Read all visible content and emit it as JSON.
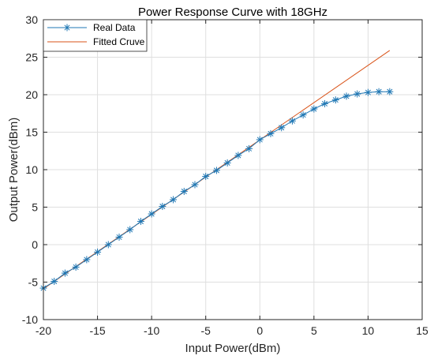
{
  "chart_data": {
    "type": "line",
    "title": "Power Response Curve with 18GHz",
    "xlabel": "Input Power(dBm)",
    "ylabel": "Output Power(dBm)",
    "xlim": [
      -20,
      15
    ],
    "ylim": [
      -10,
      30
    ],
    "xticks": [
      "-20",
      "-15",
      "-10",
      "-5",
      "0",
      "5",
      "10",
      "15"
    ],
    "yticks": [
      "-10",
      "-5",
      "0",
      "5",
      "10",
      "15",
      "20",
      "25",
      "30"
    ],
    "grid": true,
    "legend_position": "top-left",
    "series": [
      {
        "name": "Real Data",
        "color": "#1f77b4",
        "marker": "asterisk",
        "points": [
          [
            -20,
            -5.8
          ],
          [
            -19,
            -4.9
          ],
          [
            -18,
            -3.8
          ],
          [
            -17,
            -3.0
          ],
          [
            -16,
            -2.0
          ],
          [
            -15,
            -1.0
          ],
          [
            -14,
            0.0
          ],
          [
            -13,
            1.0
          ],
          [
            -12,
            2.0
          ],
          [
            -11,
            3.1
          ],
          [
            -10,
            4.1
          ],
          [
            -9,
            5.1
          ],
          [
            -8,
            6.0
          ],
          [
            -7,
            7.1
          ],
          [
            -6,
            8.0
          ],
          [
            -5,
            9.1
          ],
          [
            -4,
            9.9
          ],
          [
            -3,
            10.9
          ],
          [
            -2,
            11.9
          ],
          [
            -1,
            12.8
          ],
          [
            0,
            14.0
          ],
          [
            1,
            14.8
          ],
          [
            2,
            15.6
          ],
          [
            3,
            16.5
          ],
          [
            4,
            17.3
          ],
          [
            5,
            18.1
          ],
          [
            6,
            18.8
          ],
          [
            7,
            19.3
          ],
          [
            8,
            19.8
          ],
          [
            9,
            20.1
          ],
          [
            10,
            20.3
          ],
          [
            11,
            20.4
          ],
          [
            12,
            20.4
          ]
        ]
      },
      {
        "name": "Fitted Cruve",
        "color": "#d95319",
        "marker": "none",
        "points": [
          [
            -20,
            -5.9
          ],
          [
            12,
            25.9
          ]
        ]
      }
    ]
  }
}
